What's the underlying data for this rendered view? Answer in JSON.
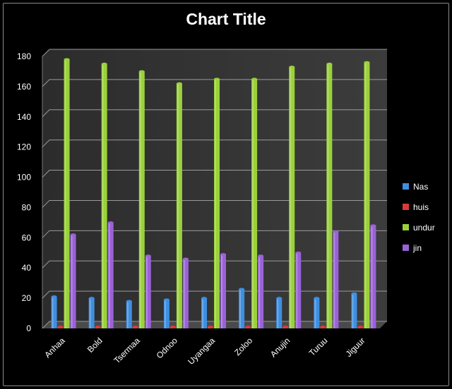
{
  "chart_data": {
    "type": "bar",
    "title": "Chart Title",
    "xlabel": "",
    "ylabel": "",
    "ylim": [
      0,
      180
    ],
    "yticks": [
      0,
      20,
      40,
      60,
      80,
      100,
      120,
      140,
      160,
      180
    ],
    "grid": true,
    "legend_position": "right",
    "categories": [
      "Anhaa",
      "Bold",
      "Tsermaa",
      "Odnoo",
      "Uyangaa",
      "Zoloo",
      "Anujin",
      "Turuu",
      "Jiguur"
    ],
    "series": [
      {
        "name": "Nas",
        "color": "#3f8fe0",
        "values": [
          21,
          20,
          18,
          19,
          20,
          26,
          20,
          20,
          23
        ]
      },
      {
        "name": "huis",
        "color": "#d83a3a",
        "values": [
          1,
          1,
          1,
          1,
          1,
          1,
          1,
          1,
          1
        ]
      },
      {
        "name": "undur",
        "color": "#9ad13a",
        "values": [
          178,
          175,
          170,
          162,
          165,
          165,
          173,
          175,
          176
        ]
      },
      {
        "name": "jin",
        "color": "#9a62d8",
        "values": [
          62,
          70,
          48,
          46,
          49,
          48,
          50,
          64,
          68
        ]
      }
    ]
  }
}
